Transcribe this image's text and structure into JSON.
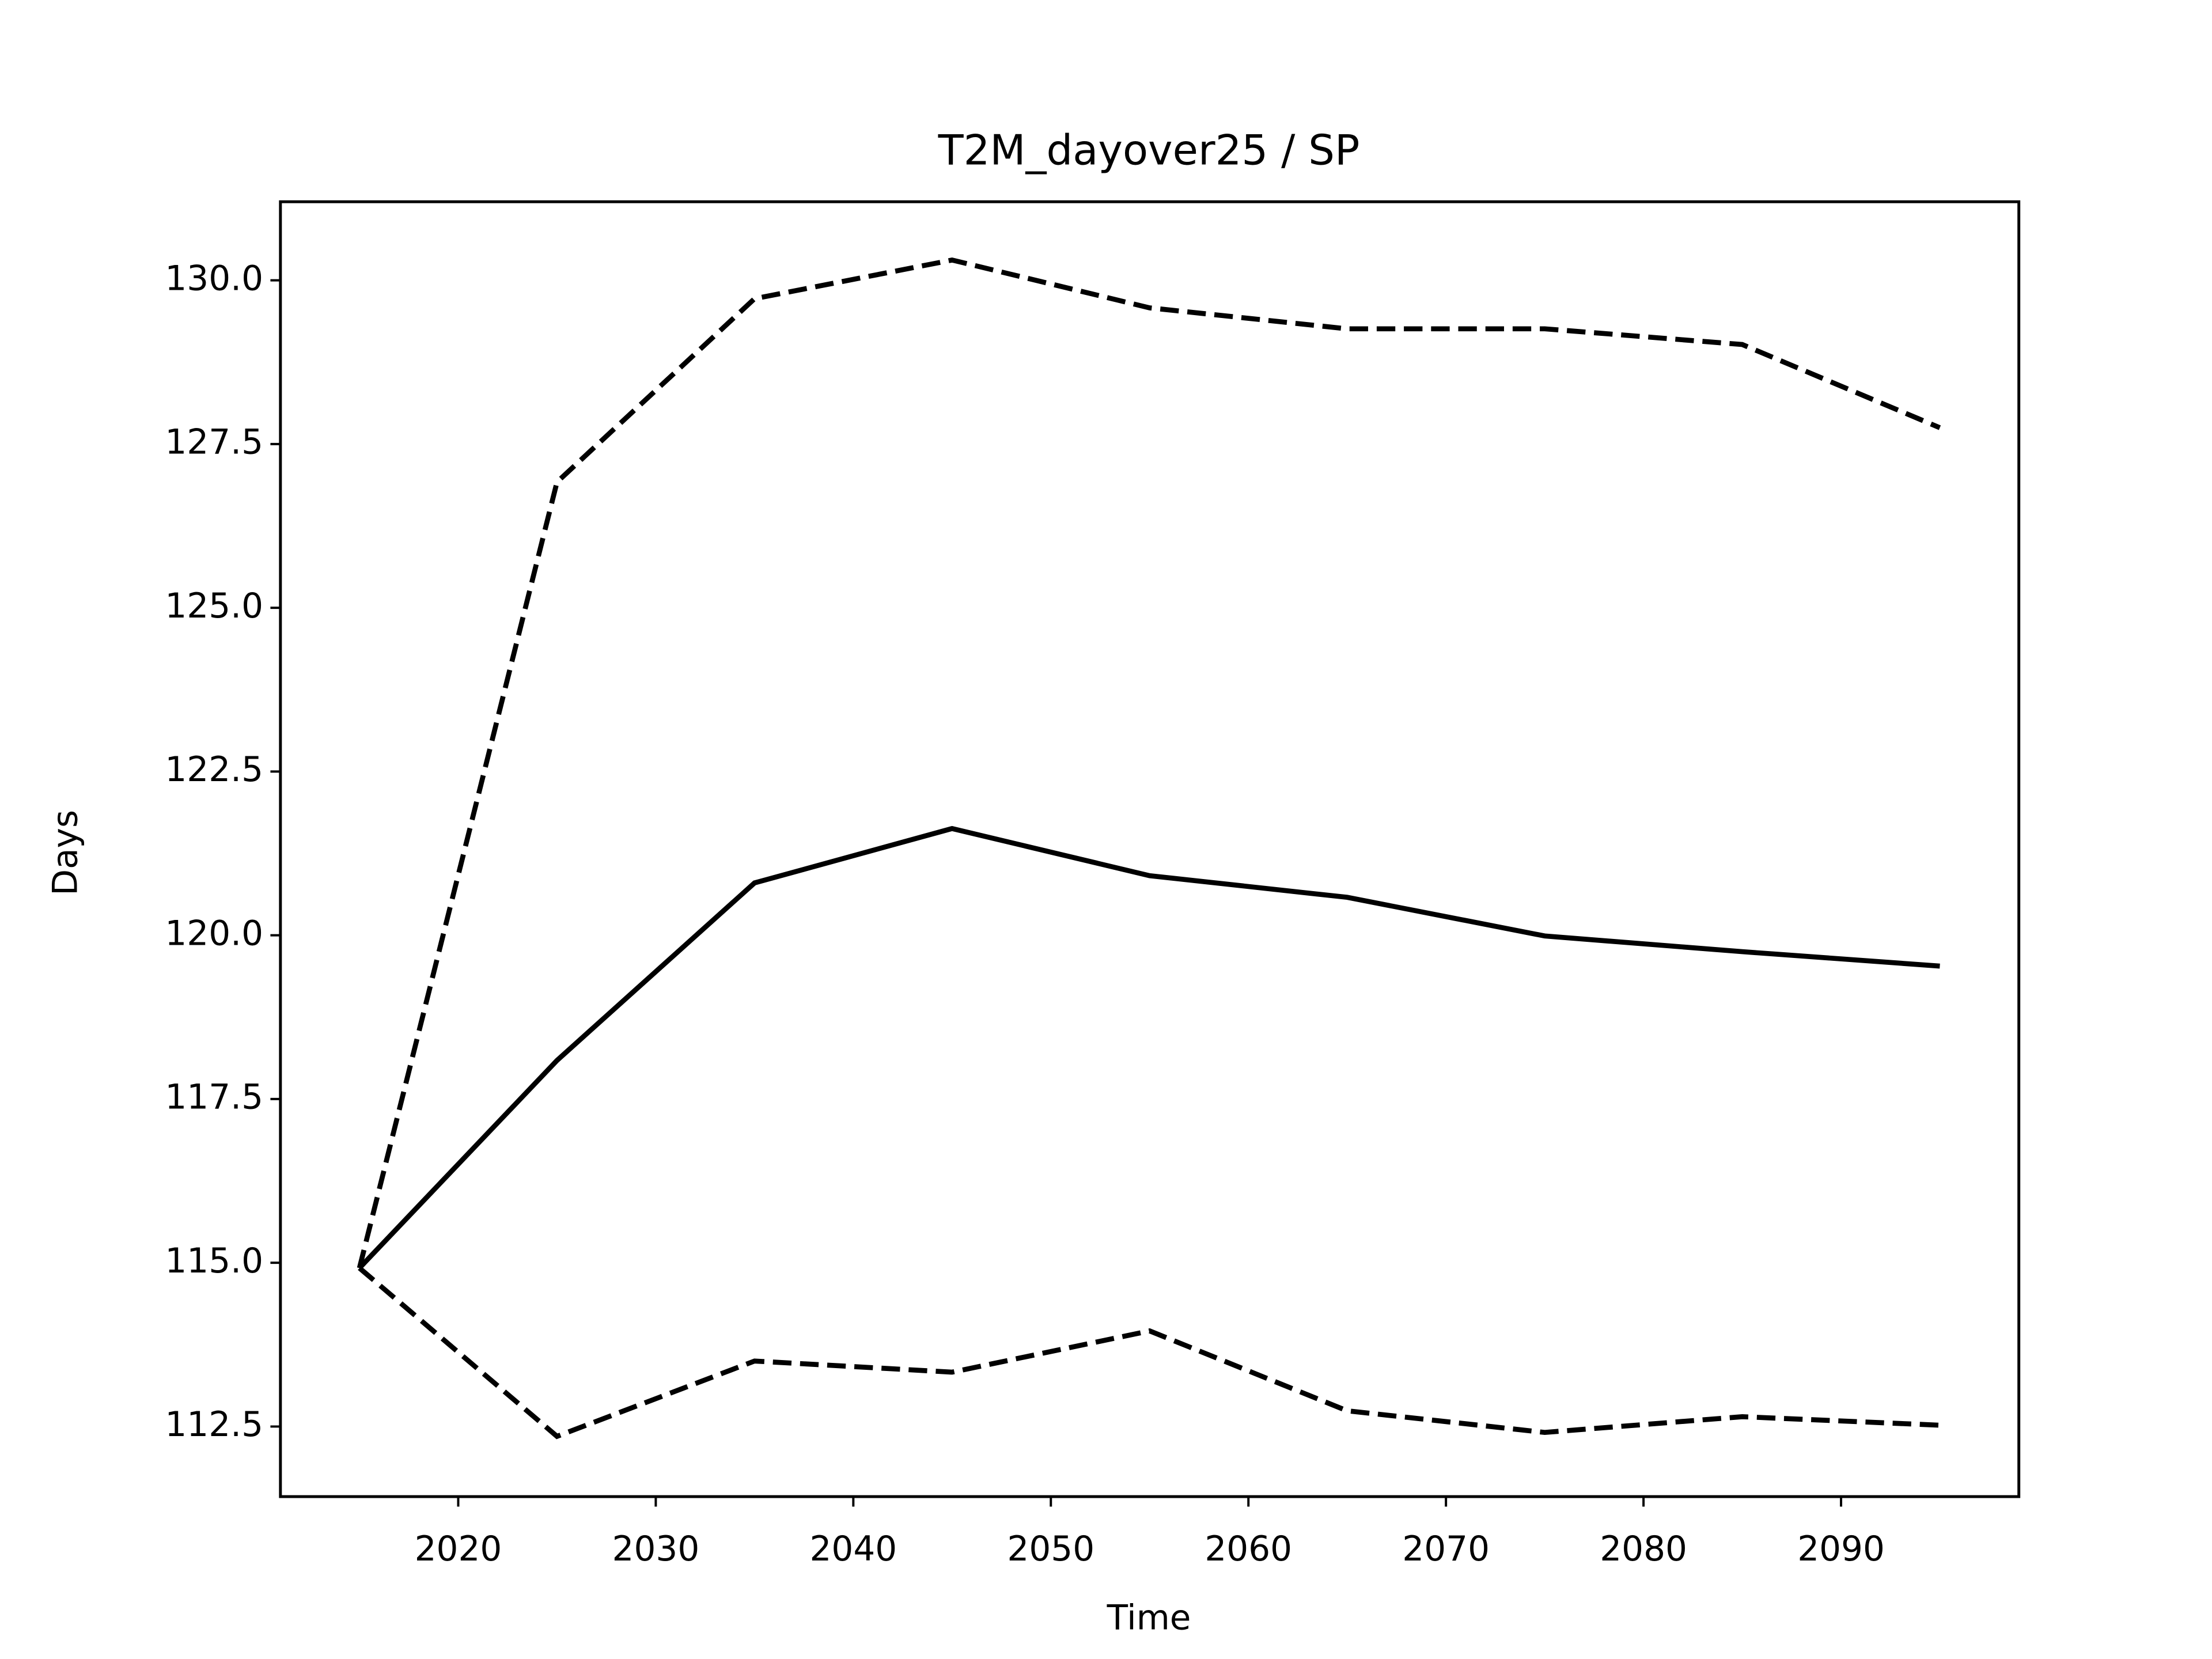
{
  "chart_data": {
    "type": "line",
    "title": "T2M_dayover25 / SP",
    "xlabel": "Time",
    "ylabel": "Days",
    "x": [
      2015,
      2025,
      2035,
      2045,
      2055,
      2065,
      2075,
      2085,
      2095
    ],
    "series": [
      {
        "color": "#000000",
        "linestyle": "solid",
        "values": [
          114.92,
          118.09,
          120.8,
          121.63,
          120.91,
          120.58,
          119.99,
          119.75,
          119.53
        ]
      },
      {
        "color": "#000000",
        "linestyle": "dashed",
        "values": [
          114.92,
          126.92,
          129.72,
          130.31,
          129.58,
          129.26,
          129.26,
          129.02,
          127.75
        ]
      },
      {
        "color": "#000000",
        "linestyle": "dashed",
        "values": [
          114.92,
          112.35,
          113.5,
          113.33,
          113.96,
          112.74,
          112.41,
          112.65,
          112.52
        ]
      }
    ],
    "xlim": [
      2011,
      2099
    ],
    "xticks": [
      2020,
      2030,
      2040,
      2050,
      2060,
      2070,
      2080,
      2090
    ],
    "ylim": [
      111.43,
      131.2
    ],
    "yticks": [
      {
        "value": 112.5,
        "label": "112.5"
      },
      {
        "value": 115,
        "label": "115.0"
      },
      {
        "value": 117.5,
        "label": "117.5"
      },
      {
        "value": 120,
        "label": "120.0"
      },
      {
        "value": 122.5,
        "label": "122.5"
      },
      {
        "value": 125,
        "label": "125.0"
      },
      {
        "value": 127.5,
        "label": "127.5"
      },
      {
        "value": 130,
        "label": "130.0"
      }
    ],
    "grid": false
  }
}
